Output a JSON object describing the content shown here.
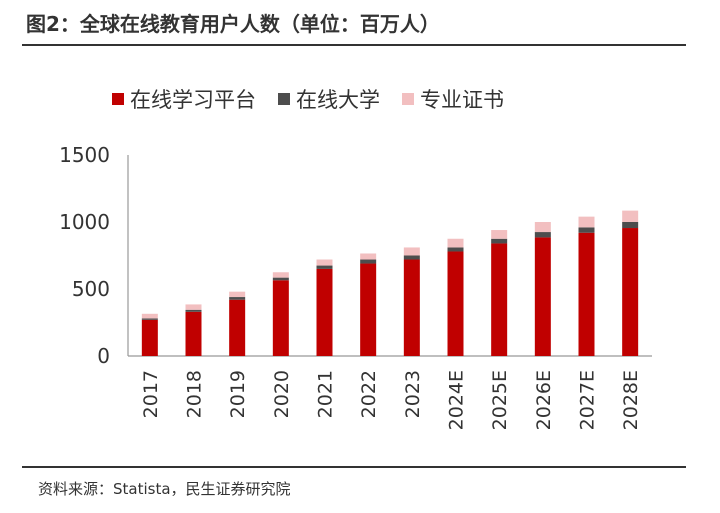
{
  "title": "图2：全球在线教育用户人数（单位：百万人）",
  "source": "资料来源：Statista，民生证券研究院",
  "colors": {
    "platform": "#C00000",
    "university": "#4D4D4D",
    "certificate": "#F2BFC0",
    "axis": "#999999"
  },
  "chart_data": {
    "type": "bar",
    "stacked": true,
    "title": "全球在线教育用户人数（单位：百万人）",
    "xlabel": "",
    "ylabel": "",
    "ylim": [
      0,
      1500
    ],
    "yticks": [
      0,
      500,
      1000,
      1500
    ],
    "grid": false,
    "legend_position": "top",
    "categories": [
      "2017",
      "2018",
      "2019",
      "2020",
      "2021",
      "2022",
      "2023",
      "2024E",
      "2025E",
      "2026E",
      "2027E",
      "2028E"
    ],
    "series": [
      {
        "name": "在线学习平台",
        "color": "#C00000",
        "values": [
          270,
          330,
          420,
          565,
          650,
          690,
          720,
          780,
          840,
          885,
          920,
          955
        ]
      },
      {
        "name": "在线大学",
        "color": "#4D4D4D",
        "values": [
          10,
          15,
          20,
          20,
          25,
          30,
          30,
          30,
          35,
          40,
          40,
          45
        ]
      },
      {
        "name": "专业证书",
        "color": "#F2BFC0",
        "values": [
          35,
          40,
          40,
          40,
          45,
          45,
          60,
          65,
          65,
          75,
          80,
          85
        ]
      }
    ]
  }
}
